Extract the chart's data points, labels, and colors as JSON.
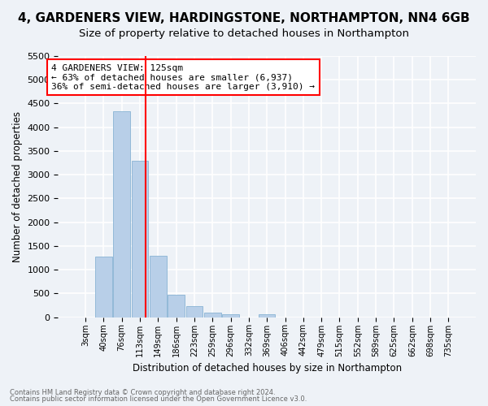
{
  "title": "4, GARDENERS VIEW, HARDINGSTONE, NORTHAMPTON, NN4 6GB",
  "subtitle": "Size of property relative to detached houses in Northampton",
  "xlabel": "Distribution of detached houses by size in Northampton",
  "ylabel": "Number of detached properties",
  "bar_color": "#b8cfe8",
  "bar_edge_color": "#7aaace",
  "bin_labels": [
    "3sqm",
    "40sqm",
    "76sqm",
    "113sqm",
    "149sqm",
    "186sqm",
    "223sqm",
    "259sqm",
    "296sqm",
    "332sqm",
    "369sqm",
    "406sqm",
    "442sqm",
    "479sqm",
    "515sqm",
    "552sqm",
    "589sqm",
    "625sqm",
    "662sqm",
    "698sqm",
    "735sqm"
  ],
  "bar_heights": [
    0,
    1270,
    4330,
    3290,
    1290,
    480,
    235,
    95,
    60,
    0,
    55,
    0,
    0,
    0,
    0,
    0,
    0,
    0,
    0,
    0,
    0
  ],
  "ylim": [
    0,
    5500
  ],
  "yticks": [
    0,
    500,
    1000,
    1500,
    2000,
    2500,
    3000,
    3500,
    4000,
    4500,
    5000,
    5500
  ],
  "annotation_title": "4 GARDENERS VIEW: 125sqm",
  "annotation_line1": "← 63% of detached houses are smaller (6,937)",
  "annotation_line2": "36% of semi-detached houses are larger (3,910) →",
  "footer1": "Contains HM Land Registry data © Crown copyright and database right 2024.",
  "footer2": "Contains public sector information licensed under the Open Government Licence v3.0.",
  "background_color": "#eef2f7",
  "grid_color": "#ffffff",
  "title_fontsize": 11,
  "subtitle_fontsize": 9.5
}
